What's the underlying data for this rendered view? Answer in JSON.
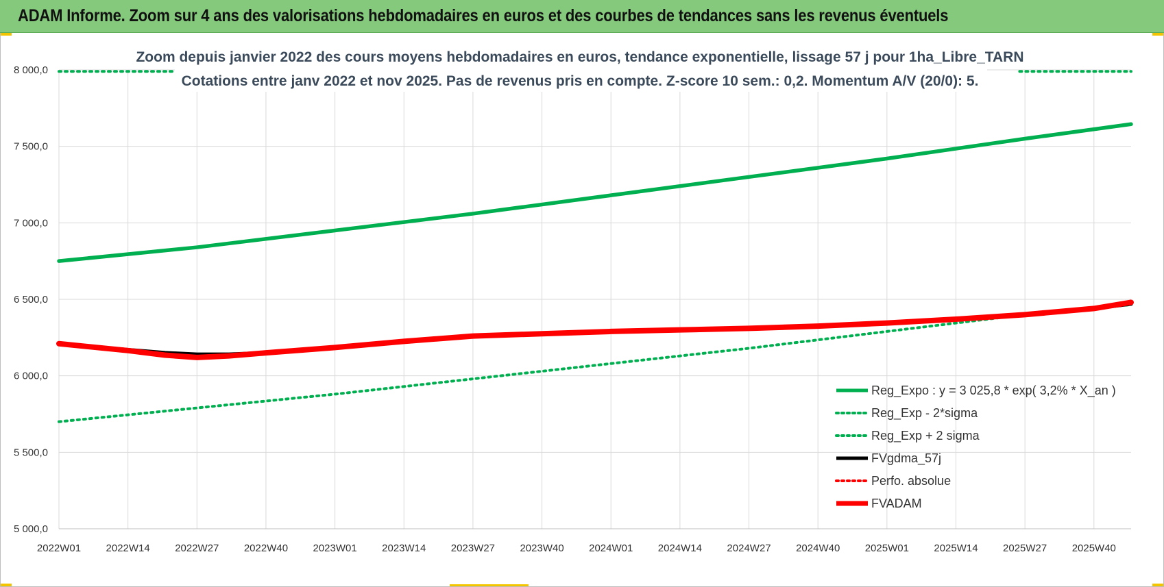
{
  "header": {
    "title": "ADAM Informe. Zoom sur 4 ans des valorisations hebdomadaires en euros et des courbes de tendances sans les revenus éventuels"
  },
  "chart_data": {
    "type": "line",
    "title": "Zoom depuis janvier 2022 des cours moyens hebdomadaires en euros, tendance exponentielle, lissage 57 j pour 1ha_Libre_TARN",
    "subtitle": "Cotations entre janv 2022 et nov 2025. Pas de revenus pris en compte. Z-score 10 sem.: 0,2. Momentum A/V (20/0): 5.",
    "x_tick_labels": [
      "2022W01",
      "2022W14",
      "2022W27",
      "2022W40",
      "2023W01",
      "2023W14",
      "2023W27",
      "2023W40",
      "2024W01",
      "2024W14",
      "2024W27",
      "2024W40",
      "2025W01",
      "2025W14",
      "2025W27",
      "2025W40"
    ],
    "y_tick_labels": [
      "5 000,0",
      "5 500,0",
      "6 000,0",
      "6 500,0",
      "7 000,0",
      "7 500,0",
      "8 000,0"
    ],
    "ylim": [
      5000,
      8000
    ],
    "y_ticks": [
      5000,
      5500,
      6000,
      6500,
      7000,
      7500,
      8000
    ],
    "x_weeks_total": 202,
    "grid": true,
    "legend_position": "bottom-right",
    "series": [
      {
        "name": "Reg_Expo : y = 3 025,8 * exp( 3,2% *  X_an )",
        "color": "#00b050",
        "style": "solid",
        "x": [
          0,
          26,
          52,
          78,
          104,
          130,
          156,
          182,
          202
        ],
        "y": [
          6750,
          6840,
          6950,
          7060,
          7180,
          7300,
          7420,
          7550,
          7645
        ]
      },
      {
        "name": "Reg_Exp - 2*sigma",
        "color": "#00b050",
        "style": "dotted",
        "x": [
          0,
          26,
          52,
          78,
          104,
          130,
          156,
          182,
          202
        ],
        "y": [
          5700,
          5790,
          5880,
          5980,
          6080,
          6180,
          6290,
          6400,
          6465
        ]
      },
      {
        "name": "Reg_Exp + 2 sigma",
        "color": "#00b050",
        "style": "dotted",
        "x": [
          0,
          202
        ],
        "y": [
          7990,
          7990
        ]
      },
      {
        "name": "FVgdma_57j",
        "color": "#000000",
        "style": "solid",
        "x": [
          0,
          13,
          20,
          26,
          32,
          39,
          52,
          65,
          78,
          91,
          104,
          117,
          130,
          143,
          156,
          169,
          182,
          195,
          202
        ],
        "y": [
          6210,
          6170,
          6150,
          6140,
          6140,
          6150,
          6185,
          6225,
          6260,
          6275,
          6290,
          6300,
          6310,
          6325,
          6345,
          6370,
          6400,
          6440,
          6470
        ]
      },
      {
        "name": "Perfo. absolue",
        "color": "#ff0000",
        "style": "dotted",
        "x": [
          0,
          13,
          20,
          26,
          32,
          39,
          52,
          65,
          78,
          91,
          104,
          117,
          130,
          143,
          156,
          169,
          182,
          195,
          202
        ],
        "y": [
          6210,
          6165,
          6135,
          6120,
          6130,
          6150,
          6185,
          6225,
          6260,
          6275,
          6290,
          6300,
          6310,
          6325,
          6345,
          6370,
          6400,
          6440,
          6480
        ]
      },
      {
        "name": "FVADAM",
        "color": "#ff0000",
        "style": "thick",
        "x": [
          0,
          13,
          20,
          26,
          32,
          39,
          52,
          65,
          78,
          91,
          104,
          117,
          130,
          143,
          156,
          169,
          182,
          195,
          202
        ],
        "y": [
          6210,
          6165,
          6135,
          6120,
          6130,
          6150,
          6185,
          6225,
          6260,
          6275,
          6290,
          6300,
          6310,
          6325,
          6345,
          6370,
          6400,
          6440,
          6480
        ]
      }
    ]
  }
}
